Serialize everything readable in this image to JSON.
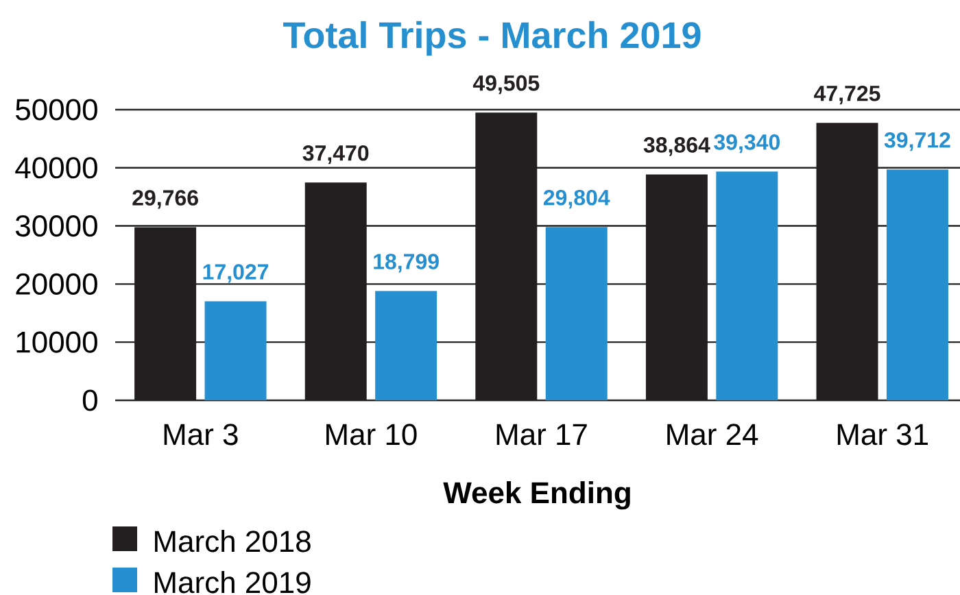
{
  "chart_data": {
    "type": "bar",
    "title": "Total Trips - March 2019",
    "xlabel": "Week Ending",
    "categories": [
      "Mar 3",
      "Mar 10",
      "Mar 17",
      "Mar 24",
      "Mar 31"
    ],
    "series": [
      {
        "name": "March 2018",
        "color": "#231f20",
        "values": [
          29766,
          37470,
          49505,
          38864,
          47725
        ],
        "value_labels": [
          "29,766",
          "37,470",
          "49,505",
          "38,864",
          "47,725"
        ]
      },
      {
        "name": "March 2019",
        "color": "#258fd0",
        "values": [
          17027,
          18799,
          29804,
          39340,
          39712
        ],
        "value_labels": [
          "17,027",
          "18,799",
          "29,804",
          "39,340",
          "39,712"
        ]
      }
    ],
    "ylim": [
      0,
      50000
    ],
    "yticks": [
      0,
      10000,
      20000,
      30000,
      40000,
      50000
    ],
    "grid": "y",
    "legend": "bottom left"
  }
}
